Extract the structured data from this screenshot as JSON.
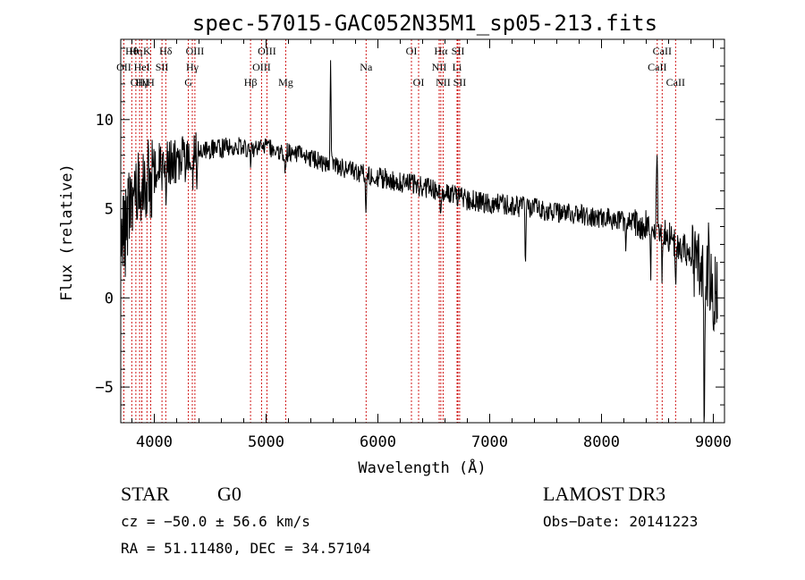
{
  "chart_data": {
    "type": "line",
    "title": "spec-57015-GAC052N35M1_sp05-213.fits",
    "xlabel": "Wavelength (Å)",
    "ylabel": "Flux (relative)",
    "xlim": [
      3700,
      9100
    ],
    "ylim": [
      -7,
      14.5
    ],
    "x_ticks": [
      4000,
      5000,
      6000,
      7000,
      8000,
      9000
    ],
    "x_tick_labels": [
      "4000",
      "5000",
      "6000",
      "7000",
      "8000",
      "9000"
    ],
    "y_ticks": [
      -5,
      0,
      5,
      10
    ],
    "y_tick_labels": [
      "−5",
      "0",
      "5",
      "10"
    ],
    "grid": false,
    "line_color": "#000000",
    "marker_color": "#cc0000",
    "continuum_anchors": [
      [
        3700,
        3.0
      ],
      [
        3800,
        5.5
      ],
      [
        3900,
        6.6
      ],
      [
        4000,
        7.2
      ],
      [
        4200,
        7.7
      ],
      [
        4400,
        8.2
      ],
      [
        4700,
        8.5
      ],
      [
        5000,
        8.4
      ],
      [
        5300,
        8.0
      ],
      [
        5600,
        7.4
      ],
      [
        5900,
        6.9
      ],
      [
        6200,
        6.5
      ],
      [
        6500,
        6.1
      ],
      [
        6800,
        5.5
      ],
      [
        7000,
        5.3
      ],
      [
        7300,
        5.1
      ],
      [
        7600,
        4.8
      ],
      [
        7900,
        4.6
      ],
      [
        8200,
        4.3
      ],
      [
        8500,
        3.9
      ],
      [
        8700,
        3.0
      ],
      [
        8900,
        1.5
      ],
      [
        9100,
        -0.5
      ]
    ],
    "features": [
      [
        3740,
        -0.5
      ],
      [
        3820,
        2.0
      ],
      [
        3880,
        -1.0
      ],
      [
        3934,
        -2.0
      ],
      [
        3968,
        -2.0
      ],
      [
        4101,
        -1.5
      ],
      [
        4340,
        -2.0
      ],
      [
        4384,
        -2.0
      ],
      [
        4861,
        -1.2
      ],
      [
        5173,
        -1.2
      ],
      [
        5577,
        5.5
      ],
      [
        5893,
        -2.5
      ],
      [
        6563,
        -1.5
      ],
      [
        7320,
        -3.0
      ],
      [
        8220,
        -1.5
      ],
      [
        8440,
        -2.5
      ],
      [
        8496,
        5.0
      ],
      [
        8542,
        -2.5
      ],
      [
        8662,
        -2.0
      ],
      [
        8920,
        -10.0
      ],
      [
        8960,
        3.0
      ],
      [
        9000,
        -4.0
      ]
    ],
    "lines": [
      {
        "label": "Hθ",
        "wave": 3798,
        "row": 0
      },
      {
        "label": "OII",
        "wave": 3727,
        "row": 1
      },
      {
        "label": "OIII",
        "wave": 3869,
        "row": 2
      },
      {
        "label": "Hη",
        "wave": 3835,
        "row": 0
      },
      {
        "label": "HeI",
        "wave": 3889,
        "row": 1
      },
      {
        "label": "Hγ",
        "wave": 3889,
        "row": 2
      },
      {
        "label": "K",
        "wave": 3934,
        "row": 0
      },
      {
        "label": "SII",
        "wave": 4069,
        "row": 1
      },
      {
        "label": "H",
        "wave": 3968,
        "row": 2
      },
      {
        "label": "Hδ",
        "wave": 4102,
        "row": 0
      },
      {
        "label": "OIII",
        "wave": 4363,
        "row": 0
      },
      {
        "label": "Hγ",
        "wave": 4340,
        "row": 1
      },
      {
        "label": "G",
        "wave": 4305,
        "row": 2
      },
      {
        "label": "Hβ",
        "wave": 4861,
        "row": 2
      },
      {
        "label": "OIII",
        "wave": 5007,
        "row": 0
      },
      {
        "label": "OIII",
        "wave": 4959,
        "row": 1
      },
      {
        "label": "Mg",
        "wave": 5175,
        "row": 2
      },
      {
        "label": "Na",
        "wave": 5894,
        "row": 1
      },
      {
        "label": "OI",
        "wave": 6300,
        "row": 0
      },
      {
        "label": "OI",
        "wave": 6364,
        "row": 2
      },
      {
        "label": "Hα",
        "wave": 6563,
        "row": 0
      },
      {
        "label": "NII",
        "wave": 6548,
        "row": 1
      },
      {
        "label": "NII",
        "wave": 6583,
        "row": 2
      },
      {
        "label": "SII",
        "wave": 6716,
        "row": 0
      },
      {
        "label": "Li",
        "wave": 6708,
        "row": 1
      },
      {
        "label": "SII",
        "wave": 6731,
        "row": 2
      },
      {
        "label": "CaII",
        "wave": 8542,
        "row": 0
      },
      {
        "label": "CaII",
        "wave": 8498,
        "row": 1
      },
      {
        "label": "CaII",
        "wave": 8662,
        "row": 2
      }
    ]
  },
  "info": {
    "object_class": "STAR",
    "subclass": "G0",
    "survey": "LAMOST DR3",
    "cz": "cz = −50.0 ± 56.6 km/s",
    "obs_date": "Obs−Date: 20141223",
    "coords": "RA =  51.11480, DEC =  34.57104"
  }
}
